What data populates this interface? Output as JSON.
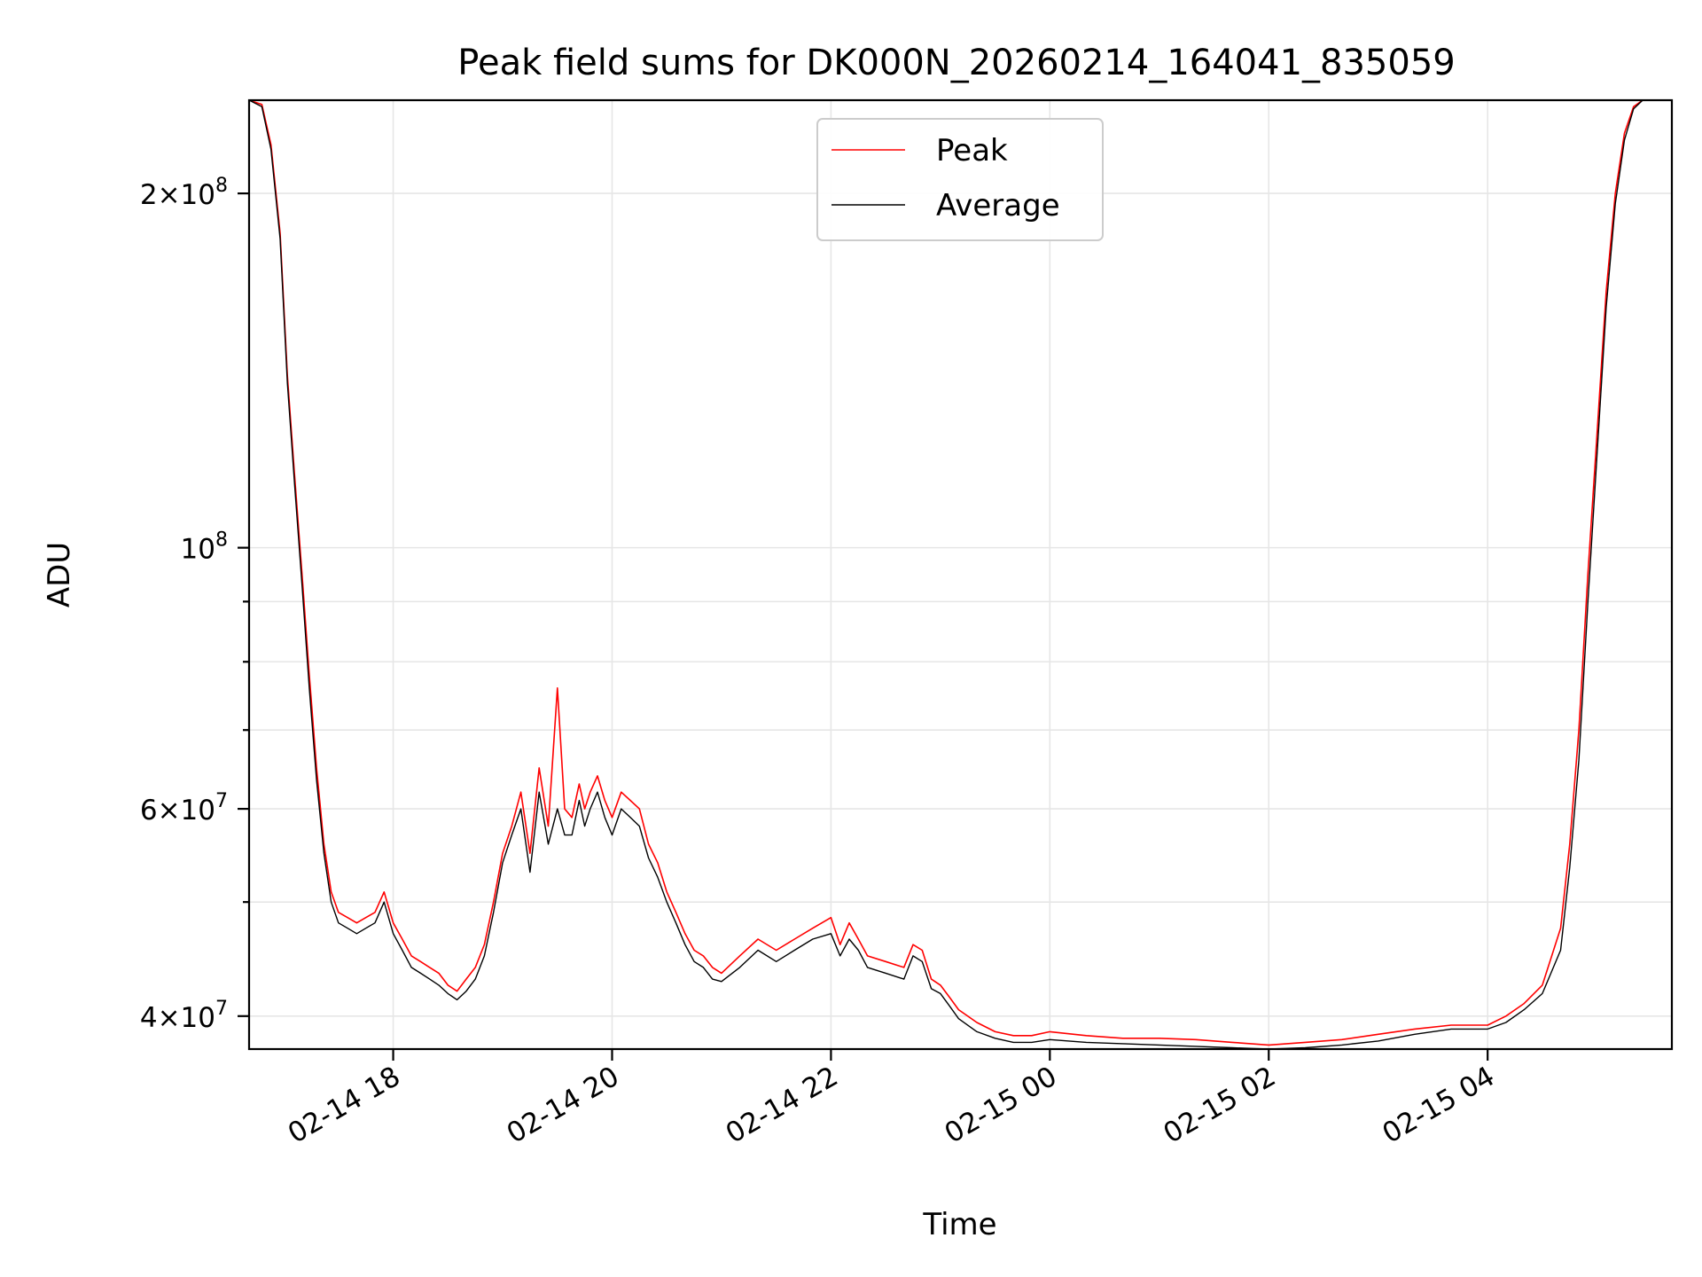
{
  "chart_data": {
    "type": "line",
    "title": "Peak field sums for DK000N_20260214_164041_835059",
    "xlabel": "Time",
    "ylabel": "ADU",
    "yscale": "log",
    "grid": true,
    "legend_position": "top-center",
    "xlim": [
      "2026-02-14 16:41",
      "2026-02-15 05:41"
    ],
    "ylim": [
      37500000,
      240000000
    ],
    "x_ticks": [
      {
        "x": "2026-02-14 18:00",
        "label": "02-14 18"
      },
      {
        "x": "2026-02-14 20:00",
        "label": "02-14 20"
      },
      {
        "x": "2026-02-14 22:00",
        "label": "02-14 22"
      },
      {
        "x": "2026-02-15 00:00",
        "label": "02-15 00"
      },
      {
        "x": "2026-02-15 02:00",
        "label": "02-15 02"
      },
      {
        "x": "2026-02-15 04:00",
        "label": "02-15 04"
      }
    ],
    "y_major_ticks": [
      {
        "y": 40000000,
        "mantissa": "4",
        "exponent": "7"
      },
      {
        "y": 60000000,
        "mantissa": "6",
        "exponent": "7"
      },
      {
        "y": 100000000,
        "mantissa": "",
        "exponent": "8"
      },
      {
        "y": 200000000,
        "mantissa": "2",
        "exponent": "8"
      }
    ],
    "y_minor_ticks": [
      50000000,
      70000000,
      80000000,
      90000000
    ],
    "series": [
      {
        "name": "Peak",
        "color": "#ff0000",
        "x": [
          "2026-02-14 16:41",
          "2026-02-14 16:48",
          "2026-02-14 16:53",
          "2026-02-14 16:58",
          "2026-02-14 17:02",
          "2026-02-14 17:06",
          "2026-02-14 17:10",
          "2026-02-14 17:14",
          "2026-02-14 17:18",
          "2026-02-14 17:22",
          "2026-02-14 17:26",
          "2026-02-14 17:30",
          "2026-02-14 17:35",
          "2026-02-14 17:40",
          "2026-02-14 17:45",
          "2026-02-14 17:50",
          "2026-02-14 17:55",
          "2026-02-14 18:00",
          "2026-02-14 18:05",
          "2026-02-14 18:10",
          "2026-02-14 18:15",
          "2026-02-14 18:20",
          "2026-02-14 18:25",
          "2026-02-14 18:30",
          "2026-02-14 18:35",
          "2026-02-14 18:40",
          "2026-02-14 18:45",
          "2026-02-14 18:50",
          "2026-02-14 18:55",
          "2026-02-14 19:00",
          "2026-02-14 19:05",
          "2026-02-14 19:10",
          "2026-02-14 19:15",
          "2026-02-14 19:20",
          "2026-02-14 19:25",
          "2026-02-14 19:30",
          "2026-02-14 19:34",
          "2026-02-14 19:38",
          "2026-02-14 19:42",
          "2026-02-14 19:45",
          "2026-02-14 19:48",
          "2026-02-14 19:52",
          "2026-02-14 19:56",
          "2026-02-14 20:00",
          "2026-02-14 20:05",
          "2026-02-14 20:10",
          "2026-02-14 20:15",
          "2026-02-14 20:20",
          "2026-02-14 20:25",
          "2026-02-14 20:30",
          "2026-02-14 20:35",
          "2026-02-14 20:40",
          "2026-02-14 20:45",
          "2026-02-14 20:50",
          "2026-02-14 20:55",
          "2026-02-14 21:00",
          "2026-02-14 21:10",
          "2026-02-14 21:20",
          "2026-02-14 21:30",
          "2026-02-14 21:40",
          "2026-02-14 21:50",
          "2026-02-14 22:00",
          "2026-02-14 22:05",
          "2026-02-14 22:10",
          "2026-02-14 22:15",
          "2026-02-14 22:20",
          "2026-02-14 22:30",
          "2026-02-14 22:40",
          "2026-02-14 22:45",
          "2026-02-14 22:50",
          "2026-02-14 22:55",
          "2026-02-14 23:00",
          "2026-02-14 23:05",
          "2026-02-14 23:10",
          "2026-02-14 23:20",
          "2026-02-14 23:30",
          "2026-02-14 23:40",
          "2026-02-14 23:50",
          "2026-02-15 00:00",
          "2026-02-15 00:20",
          "2026-02-15 00:40",
          "2026-02-15 01:00",
          "2026-02-15 01:20",
          "2026-02-15 01:40",
          "2026-02-15 02:00",
          "2026-02-15 02:20",
          "2026-02-15 02:40",
          "2026-02-15 03:00",
          "2026-02-15 03:20",
          "2026-02-15 03:40",
          "2026-02-15 04:00",
          "2026-02-15 04:10",
          "2026-02-15 04:20",
          "2026-02-15 04:30",
          "2026-02-15 04:40",
          "2026-02-15 04:45",
          "2026-02-15 04:50",
          "2026-02-15 04:55",
          "2026-02-15 05:00",
          "2026-02-15 05:05",
          "2026-02-15 05:10",
          "2026-02-15 05:15",
          "2026-02-15 05:20",
          "2026-02-15 05:25",
          "2026-02-15 05:30",
          "2026-02-15 05:41"
        ],
        "values": [
          240000000,
          238000000,
          220000000,
          185000000,
          140000000,
          115000000,
          95000000,
          78000000,
          65000000,
          56000000,
          51000000,
          49000000,
          48500000,
          48000000,
          48500000,
          49000000,
          51000000,
          48000000,
          46500000,
          45000000,
          44500000,
          44000000,
          43500000,
          42500000,
          42000000,
          43000000,
          44000000,
          46000000,
          50000000,
          55000000,
          58000000,
          62000000,
          55000000,
          65000000,
          58000000,
          76000000,
          60000000,
          59000000,
          63000000,
          60000000,
          62000000,
          64000000,
          61000000,
          59000000,
          62000000,
          61000000,
          60000000,
          56000000,
          54000000,
          51000000,
          49000000,
          47000000,
          45500000,
          45000000,
          44000000,
          43500000,
          45000000,
          46500000,
          45500000,
          46500000,
          47500000,
          48500000,
          46000000,
          48000000,
          46500000,
          45000000,
          44500000,
          44000000,
          46000000,
          45500000,
          43000000,
          42500000,
          41500000,
          40500000,
          39500000,
          38800000,
          38500000,
          38500000,
          38800000,
          38500000,
          38300000,
          38300000,
          38200000,
          38000000,
          37800000,
          38000000,
          38200000,
          38600000,
          39000000,
          39300000,
          39300000,
          40000000,
          41000000,
          42500000,
          47500000,
          56000000,
          70000000,
          95000000,
          125000000,
          165000000,
          200000000,
          225000000,
          237000000,
          240000000,
          240000000,
          240000000
        ]
      },
      {
        "name": "Average",
        "color": "#000000",
        "x": [
          "2026-02-14 16:41",
          "2026-02-14 16:48",
          "2026-02-14 16:53",
          "2026-02-14 16:58",
          "2026-02-14 17:02",
          "2026-02-14 17:06",
          "2026-02-14 17:10",
          "2026-02-14 17:14",
          "2026-02-14 17:18",
          "2026-02-14 17:22",
          "2026-02-14 17:26",
          "2026-02-14 17:30",
          "2026-02-14 17:35",
          "2026-02-14 17:40",
          "2026-02-14 17:45",
          "2026-02-14 17:50",
          "2026-02-14 17:55",
          "2026-02-14 18:00",
          "2026-02-14 18:05",
          "2026-02-14 18:10",
          "2026-02-14 18:15",
          "2026-02-14 18:20",
          "2026-02-14 18:25",
          "2026-02-14 18:30",
          "2026-02-14 18:35",
          "2026-02-14 18:40",
          "2026-02-14 18:45",
          "2026-02-14 18:50",
          "2026-02-14 18:55",
          "2026-02-14 19:00",
          "2026-02-14 19:05",
          "2026-02-14 19:10",
          "2026-02-14 19:15",
          "2026-02-14 19:20",
          "2026-02-14 19:25",
          "2026-02-14 19:30",
          "2026-02-14 19:34",
          "2026-02-14 19:38",
          "2026-02-14 19:42",
          "2026-02-14 19:45",
          "2026-02-14 19:48",
          "2026-02-14 19:52",
          "2026-02-14 19:56",
          "2026-02-14 20:00",
          "2026-02-14 20:05",
          "2026-02-14 20:10",
          "2026-02-14 20:15",
          "2026-02-14 20:20",
          "2026-02-14 20:25",
          "2026-02-14 20:30",
          "2026-02-14 20:35",
          "2026-02-14 20:40",
          "2026-02-14 20:45",
          "2026-02-14 20:50",
          "2026-02-14 20:55",
          "2026-02-14 21:00",
          "2026-02-14 21:10",
          "2026-02-14 21:20",
          "2026-02-14 21:30",
          "2026-02-14 21:40",
          "2026-02-14 21:50",
          "2026-02-14 22:00",
          "2026-02-14 22:05",
          "2026-02-14 22:10",
          "2026-02-14 22:15",
          "2026-02-14 22:20",
          "2026-02-14 22:30",
          "2026-02-14 22:40",
          "2026-02-14 22:45",
          "2026-02-14 22:50",
          "2026-02-14 22:55",
          "2026-02-14 23:00",
          "2026-02-14 23:05",
          "2026-02-14 23:10",
          "2026-02-14 23:20",
          "2026-02-14 23:30",
          "2026-02-14 23:40",
          "2026-02-14 23:50",
          "2026-02-15 00:00",
          "2026-02-15 00:20",
          "2026-02-15 00:40",
          "2026-02-15 01:00",
          "2026-02-15 01:20",
          "2026-02-15 01:40",
          "2026-02-15 02:00",
          "2026-02-15 02:20",
          "2026-02-15 02:40",
          "2026-02-15 03:00",
          "2026-02-15 03:20",
          "2026-02-15 03:40",
          "2026-02-15 04:00",
          "2026-02-15 04:10",
          "2026-02-15 04:20",
          "2026-02-15 04:30",
          "2026-02-15 04:40",
          "2026-02-15 04:45",
          "2026-02-15 04:50",
          "2026-02-15 04:55",
          "2026-02-15 05:00",
          "2026-02-15 05:05",
          "2026-02-15 05:10",
          "2026-02-15 05:15",
          "2026-02-15 05:20",
          "2026-02-15 05:25",
          "2026-02-15 05:30",
          "2026-02-15 05:41"
        ],
        "values": [
          240000000,
          237000000,
          218000000,
          183000000,
          138000000,
          113000000,
          93000000,
          76000000,
          63500000,
          55000000,
          50000000,
          48000000,
          47500000,
          47000000,
          47500000,
          48000000,
          50000000,
          47000000,
          45500000,
          44000000,
          43500000,
          43000000,
          42500000,
          41800000,
          41300000,
          42000000,
          43000000,
          45000000,
          49000000,
          54000000,
          57000000,
          60000000,
          53000000,
          62000000,
          56000000,
          60000000,
          57000000,
          57000000,
          61000000,
          58000000,
          60000000,
          62000000,
          59000000,
          57000000,
          60000000,
          59000000,
          58000000,
          54500000,
          52500000,
          50000000,
          48000000,
          46000000,
          44500000,
          44000000,
          43000000,
          42800000,
          44000000,
          45500000,
          44500000,
          45500000,
          46500000,
          47000000,
          45000000,
          46500000,
          45500000,
          44000000,
          43500000,
          43000000,
          45000000,
          44500000,
          42200000,
          41800000,
          40800000,
          39800000,
          38800000,
          38300000,
          38000000,
          38000000,
          38200000,
          38000000,
          37900000,
          37800000,
          37700000,
          37600000,
          37500000,
          37600000,
          37800000,
          38100000,
          38600000,
          39000000,
          39000000,
          39500000,
          40500000,
          41800000,
          45500000,
          53500000,
          66000000,
          90000000,
          120000000,
          160000000,
          196000000,
          222000000,
          236000000,
          240000000,
          240000000,
          240000000
        ]
      }
    ]
  }
}
